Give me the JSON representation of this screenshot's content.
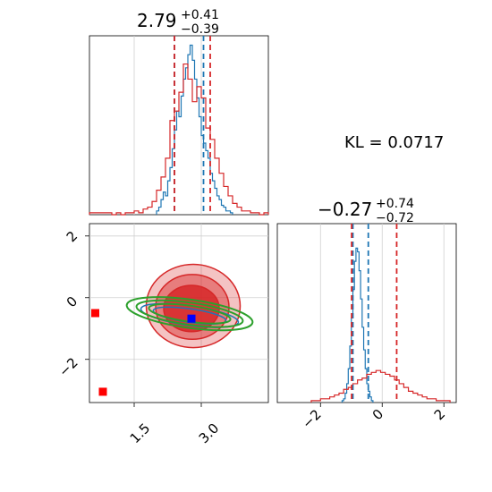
{
  "chart_data": {
    "type": "corner",
    "kl_label": "KL = 0.0717",
    "params": [
      {
        "value": "2.79",
        "upper": "+0.41",
        "lower": "−0.39"
      },
      {
        "value": "−0.27",
        "upper": "+0.74",
        "lower": "−0.72"
      }
    ],
    "ranges": [
      [
        0.5,
        4.5
      ],
      [
        -3.4,
        2.4
      ]
    ],
    "x_ticks": {
      "values": [
        1.5,
        3.0
      ],
      "labels": [
        "1.5",
        "3.0"
      ]
    },
    "y_ticks": {
      "values": [
        2,
        0,
        -2
      ],
      "labels": [
        "2",
        "0",
        "−2"
      ]
    },
    "p2_ticks": {
      "values": [
        -2,
        0,
        2
      ],
      "labels": [
        "−2",
        "0",
        "2"
      ]
    },
    "colors": {
      "blue": "#1f77b4",
      "red": "#d62728",
      "green": "#2ca02c",
      "grid": "#d0d0d0"
    },
    "series": [
      {
        "name": "blue",
        "quantiles_p1": [
          2.4,
          3.05
        ],
        "quantiles_p2": [
          -0.95,
          -0.45
        ],
        "hist_p1": {
          "edges": [
            2.0,
            2.05,
            2.1,
            2.15,
            2.2,
            2.25,
            2.3,
            2.35,
            2.4,
            2.45,
            2.5,
            2.55,
            2.6,
            2.65,
            2.7,
            2.75,
            2.8,
            2.85,
            2.9,
            2.95,
            3.0,
            3.05,
            3.1,
            3.15,
            3.2,
            3.25,
            3.3,
            3.35,
            3.4,
            3.45,
            3.5,
            3.55,
            3.6,
            3.65,
            3.7
          ],
          "values": [
            0.02,
            0.04,
            0.08,
            0.12,
            0.1,
            0.18,
            0.25,
            0.35,
            0.45,
            0.55,
            0.52,
            0.63,
            0.72,
            0.78,
            0.85,
            0.9,
            0.82,
            0.72,
            0.62,
            0.52,
            0.42,
            0.38,
            0.34,
            0.3,
            0.22,
            0.18,
            0.14,
            0.1,
            0.08,
            0.05,
            0.04,
            0.02,
            0.02,
            0.01
          ]
        },
        "hist_p2": {
          "edges": [
            -1.3,
            -1.25,
            -1.2,
            -1.15,
            -1.1,
            -1.05,
            -1.0,
            -0.95,
            -0.9,
            -0.85,
            -0.8,
            -0.75,
            -0.7,
            -0.65,
            -0.6,
            -0.55,
            -0.5,
            -0.45,
            -0.4,
            -0.35,
            -0.3
          ],
          "values": [
            0.01,
            0.02,
            0.05,
            0.1,
            0.18,
            0.3,
            0.45,
            0.6,
            0.75,
            0.82,
            0.8,
            0.7,
            0.55,
            0.4,
            0.28,
            0.18,
            0.1,
            0.06,
            0.03,
            0.01
          ]
        }
      },
      {
        "name": "red",
        "quantiles_p1": [
          2.4,
          3.2
        ],
        "quantiles_p2": [
          -0.99,
          0.47
        ],
        "hist_p1": {
          "edges": [
            0.5,
            0.6,
            0.7,
            0.8,
            0.9,
            1.0,
            1.1,
            1.2,
            1.3,
            1.4,
            1.5,
            1.6,
            1.7,
            1.8,
            1.9,
            2.0,
            2.1,
            2.2,
            2.3,
            2.4,
            2.5,
            2.6,
            2.7,
            2.8,
            2.9,
            3.0,
            3.1,
            3.2,
            3.3,
            3.4,
            3.5,
            3.6,
            3.7,
            3.8,
            3.9,
            4.0,
            4.1,
            4.2,
            4.3,
            4.4,
            4.5
          ],
          "values": [
            0.01,
            0.01,
            0.01,
            0.01,
            0.01,
            0.0,
            0.01,
            0.0,
            0.01,
            0.01,
            0.02,
            0.01,
            0.03,
            0.04,
            0.07,
            0.13,
            0.2,
            0.3,
            0.5,
            0.55,
            0.65,
            0.8,
            0.72,
            0.6,
            0.68,
            0.62,
            0.46,
            0.4,
            0.3,
            0.22,
            0.15,
            0.1,
            0.06,
            0.04,
            0.02,
            0.02,
            0.01,
            0.01,
            0.0,
            0.01
          ]
        },
        "hist_p2": {
          "edges": [
            -2.3,
            -2.15,
            -2.0,
            -1.85,
            -1.7,
            -1.55,
            -1.4,
            -1.25,
            -1.1,
            -0.95,
            -0.8,
            -0.65,
            -0.5,
            -0.35,
            -0.2,
            -0.05,
            0.1,
            0.25,
            0.4,
            0.55,
            0.7,
            0.85,
            1.0,
            1.15,
            1.3,
            1.45,
            1.6,
            1.75,
            1.9,
            2.05,
            2.2
          ],
          "values": [
            0.01,
            0.01,
            0.02,
            0.02,
            0.03,
            0.04,
            0.05,
            0.07,
            0.08,
            0.1,
            0.12,
            0.13,
            0.15,
            0.16,
            0.17,
            0.16,
            0.15,
            0.14,
            0.12,
            0.1,
            0.08,
            0.06,
            0.05,
            0.04,
            0.03,
            0.02,
            0.02,
            0.01,
            0.01,
            0.01
          ]
        }
      }
    ],
    "contours": {
      "red_outer": {
        "cx": 2.82,
        "cy": -0.27,
        "rx": 1.05,
        "ry": 1.35
      },
      "red_mid": {
        "cx": 2.8,
        "cy": -0.3,
        "rx": 0.82,
        "ry": 1.05
      },
      "red_inner": {
        "cx": 2.78,
        "cy": -0.35,
        "rx": 0.62,
        "ry": 0.75
      },
      "blue_ellipses": [
        {
          "cx": 2.74,
          "cy": -0.58,
          "rx": 1.1,
          "ry": 0.32,
          "angle": 8
        },
        {
          "cx": 2.74,
          "cy": -0.58,
          "rx": 0.82,
          "ry": 0.22,
          "angle": 8
        }
      ],
      "green_ellipses": [
        {
          "cx": 2.74,
          "cy": -0.52,
          "rx": 1.42,
          "ry": 0.46,
          "angle": 8
        },
        {
          "cx": 2.74,
          "cy": -0.52,
          "rx": 1.2,
          "ry": 0.36,
          "angle": 8
        },
        {
          "cx": 2.74,
          "cy": -0.52,
          "rx": 0.92,
          "ry": 0.26,
          "angle": 8
        }
      ]
    },
    "markers": [
      {
        "name": "truth",
        "color": "#0000ff",
        "x": 2.78,
        "y": -0.68
      },
      {
        "name": "outlier-1",
        "color": "#ff0000",
        "x": 0.63,
        "y": -0.5
      },
      {
        "name": "outlier-2",
        "color": "#ff0000",
        "x": 0.8,
        "y": -3.05
      }
    ]
  }
}
